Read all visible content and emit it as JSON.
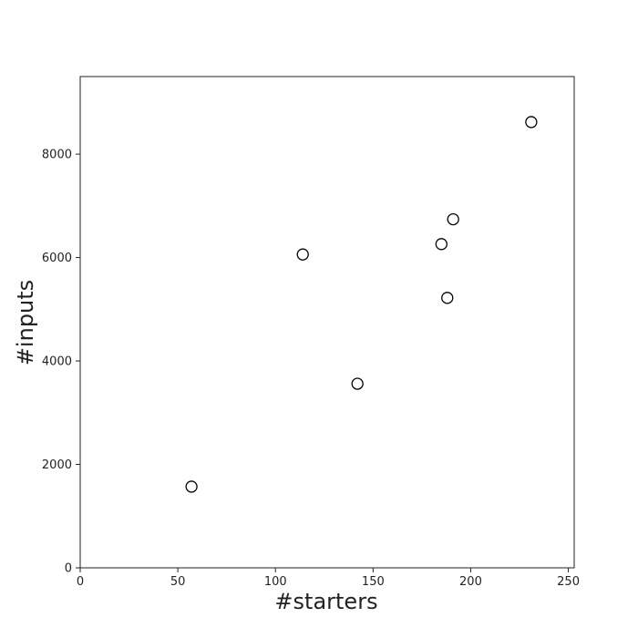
{
  "chart_data": {
    "type": "scatter",
    "xlabel": "#starters",
    "ylabel": "#inputs",
    "xlim": [
      0,
      253
    ],
    "ylim": [
      0,
      9500
    ],
    "x_ticks": [
      0,
      50,
      100,
      150,
      200,
      250
    ],
    "y_ticks": [
      0,
      2000,
      4000,
      6000,
      8000
    ],
    "x_tick_labels": [
      "0",
      "50",
      "100",
      "150",
      "200",
      "250"
    ],
    "y_tick_labels": [
      "0",
      "2000",
      "4000",
      "6000",
      "8000"
    ],
    "grid": false,
    "marker": "hollow-circle",
    "marker_color": "#000000",
    "points": [
      {
        "x": 57,
        "y": 1570
      },
      {
        "x": 114,
        "y": 6060
      },
      {
        "x": 142,
        "y": 3560
      },
      {
        "x": 185,
        "y": 6260
      },
      {
        "x": 188,
        "y": 5220
      },
      {
        "x": 191,
        "y": 6740
      },
      {
        "x": 231,
        "y": 8620
      }
    ]
  }
}
